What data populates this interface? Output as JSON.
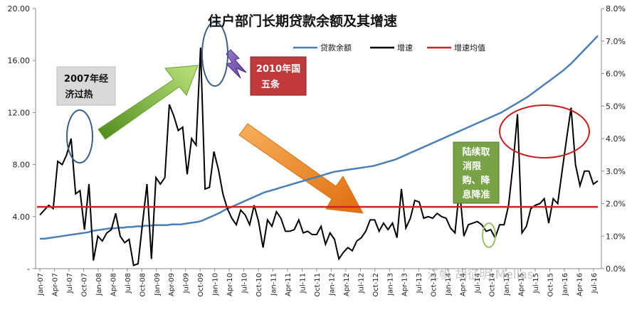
{
  "chart_data": {
    "type": "line",
    "title": "住户部门长期贷款余额及其增速",
    "y_left": {
      "ticks": [
        "20.00",
        "16.00",
        "12.00",
        "8.00",
        "4.00",
        "-"
      ],
      "range": [
        0,
        20
      ]
    },
    "y_right": {
      "ticks": [
        "8.0%",
        "7.0%",
        "6.0%",
        "5.0%",
        "4.0%",
        "3.0%",
        "2.0%",
        "1.0%",
        "0.0%"
      ],
      "range": [
        0,
        8
      ]
    },
    "x_tick_labels": [
      "Jan-07",
      "Apr-07",
      "Jul-07",
      "Oct-07",
      "Jan-08",
      "Apr-08",
      "Jul-08",
      "Oct-08",
      "Jan-09",
      "Apr-09",
      "Jul-09",
      "Oct-09",
      "Jan-10",
      "Apr-10",
      "Jul-10",
      "Oct-10",
      "Jan-11",
      "Apr-11",
      "Jul-11",
      "Oct-11",
      "Jan-12",
      "Apr-12",
      "Jul-12",
      "Oct-12",
      "Jan-13",
      "Apr-13",
      "Jul-13",
      "Oct-13",
      "Jan-14",
      "Apr-14",
      "Jul-14",
      "Oct-14",
      "Jan-15",
      "Apr-15",
      "Jul-15",
      "Oct-15",
      "Jan-16",
      "Apr-16",
      "Jul-16"
    ],
    "series": [
      {
        "name": "贷款余额",
        "axis": "left",
        "color": "#4a7fb5",
        "values": [
          2.3,
          2.3,
          2.35,
          2.4,
          2.45,
          2.5,
          2.55,
          2.6,
          2.65,
          2.7,
          2.75,
          2.8,
          2.9,
          2.95,
          3.0,
          3.05,
          3.1,
          3.1,
          3.15,
          3.15,
          3.2,
          3.2,
          3.25,
          3.25,
          3.3,
          3.3,
          3.35,
          3.35,
          3.35,
          3.35,
          3.4,
          3.4,
          3.4,
          3.45,
          3.5,
          3.55,
          3.6,
          3.7,
          3.85,
          4.0,
          4.15,
          4.3,
          4.5,
          4.65,
          4.8,
          4.95,
          5.1,
          5.25,
          5.4,
          5.55,
          5.7,
          5.85,
          5.95,
          6.05,
          6.15,
          6.25,
          6.35,
          6.45,
          6.55,
          6.65,
          6.75,
          6.85,
          6.95,
          7.05,
          7.15,
          7.25,
          7.35,
          7.45,
          7.5,
          7.55,
          7.6,
          7.65,
          7.7,
          7.75,
          7.8,
          7.85,
          7.9,
          8.0,
          8.1,
          8.2,
          8.3,
          8.4,
          8.55,
          8.7,
          8.85,
          9.0,
          9.15,
          9.3,
          9.45,
          9.6,
          9.75,
          9.9,
          10.05,
          10.2,
          10.35,
          10.5,
          10.65,
          10.8,
          10.95,
          11.1,
          11.25,
          11.4,
          11.55,
          11.7,
          11.85,
          12.0,
          12.2,
          12.4,
          12.6,
          12.8,
          13.0,
          13.2,
          13.45,
          13.7,
          13.95,
          14.2,
          14.45,
          14.7,
          14.95,
          15.2,
          15.5,
          15.8,
          16.15,
          16.5,
          16.85,
          17.2,
          17.55,
          17.9
        ]
      },
      {
        "name": "增速",
        "axis": "right",
        "color": "#000000",
        "values": [
          1.65,
          1.8,
          1.95,
          1.85,
          3.3,
          3.2,
          3.5,
          4.0,
          2.3,
          2.4,
          1.2,
          2.6,
          0.25,
          1.0,
          0.85,
          1.1,
          1.2,
          1.7,
          1.0,
          0.8,
          0.9,
          0.1,
          0.15,
          1.4,
          2.6,
          0.3,
          2.8,
          2.6,
          2.8,
          5.05,
          4.7,
          4.25,
          4.35,
          2.9,
          4.0,
          3.8,
          6.8,
          2.45,
          2.5,
          3.6,
          3.05,
          2.3,
          1.85,
          1.55,
          1.35,
          1.8,
          1.65,
          1.35,
          1.95,
          1.45,
          0.65,
          1.5,
          1.3,
          1.75,
          1.55,
          1.15,
          1.15,
          1.2,
          1.5,
          1.1,
          1.15,
          1.05,
          1.05,
          1.3,
          0.75,
          1.1,
          0.9,
          0.3,
          0.5,
          0.65,
          0.55,
          0.85,
          0.95,
          1.15,
          1.5,
          1.5,
          1.15,
          1.4,
          1.2,
          1.4,
          0.95,
          2.45,
          1.25,
          1.55,
          2.1,
          2.05,
          1.55,
          1.6,
          1.55,
          1.7,
          1.6,
          1.55,
          1.25,
          1.1,
          2.45,
          1.0,
          1.35,
          1.4,
          1.45,
          1.35,
          1.15,
          1.2,
          0.95,
          1.35,
          1.35,
          1.95,
          3.2,
          4.75,
          1.1,
          1.3,
          1.85,
          1.95,
          2.0,
          2.15,
          1.4,
          2.15,
          2.0,
          3.0,
          4.0,
          4.95,
          3.2,
          2.55,
          3.0,
          3.0,
          2.6,
          2.7
        ]
      },
      {
        "name": "增速均值",
        "axis": "right",
        "color": "#d42020",
        "values": [
          1.9
        ]
      }
    ],
    "annotations": [
      {
        "text_lines": [
          "2007年经",
          "济过热"
        ]
      },
      {
        "text_lines": [
          "2010年国",
          "五条"
        ]
      },
      {
        "text_lines": [
          "陆续取",
          "消限",
          "购、降",
          "息降准"
        ]
      }
    ],
    "watermark": "江帆 胡征明 Mellas",
    "grid": false,
    "legend_position": "top-right"
  }
}
